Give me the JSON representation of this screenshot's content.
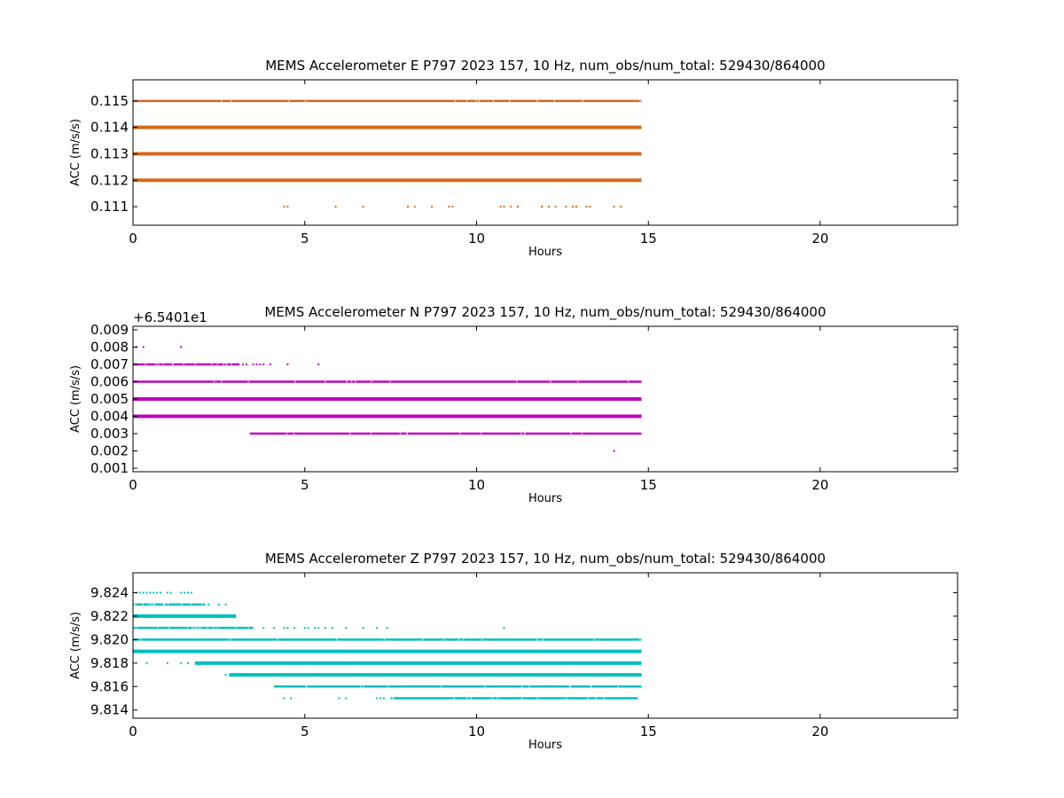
{
  "chart_data": [
    {
      "type": "scatter",
      "title": "MEMS Accelerometer E P797 2023 157, 10 Hz, num_obs/num_total: 529430/864000",
      "xlabel": "Hours",
      "ylabel": "ACC (m/s/s)",
      "xlim": [
        0,
        24
      ],
      "ylim": [
        0.1103,
        0.1158
      ],
      "xticks": [
        0,
        5,
        10,
        15,
        20
      ],
      "yticks": [
        0.111,
        0.112,
        0.113,
        0.114,
        0.115
      ],
      "ytick_labels": [
        "0.111",
        "0.112",
        "0.113",
        "0.114",
        "0.115"
      ],
      "offset_text": "",
      "color": "#d2691e",
      "grid": false,
      "legend": "none",
      "levels": [
        {
          "y": 0.115,
          "x_start": 0.0,
          "x_end": 14.8,
          "density": "medium",
          "sparse_points": []
        },
        {
          "y": 0.114,
          "x_start": 0.0,
          "x_end": 14.8,
          "density": "heavy",
          "sparse_points": []
        },
        {
          "y": 0.113,
          "x_start": 0.0,
          "x_end": 14.8,
          "density": "heavy",
          "sparse_points": []
        },
        {
          "y": 0.112,
          "x_start": 0.0,
          "x_end": 14.8,
          "density": "heavy",
          "sparse_points": []
        },
        {
          "y": 0.111,
          "x_start": null,
          "x_end": null,
          "density": "sparse",
          "sparse_points": [
            4.4,
            4.5,
            5.9,
            6.7,
            8.0,
            8.2,
            8.7,
            9.2,
            9.3,
            10.7,
            10.8,
            11.0,
            11.2,
            11.9,
            12.1,
            12.3,
            12.6,
            12.8,
            12.9,
            13.2,
            13.3,
            14.0,
            14.2
          ]
        }
      ]
    },
    {
      "type": "scatter",
      "title": "MEMS Accelerometer N P797 2023 157, 10 Hz, num_obs/num_total: 529430/864000",
      "xlabel": "Hours",
      "ylabel": "ACC (m/s/s)",
      "xlim": [
        0,
        24
      ],
      "ylim": [
        0.0008,
        0.0092
      ],
      "xticks": [
        0,
        5,
        10,
        15,
        20
      ],
      "yticks": [
        0.001,
        0.002,
        0.003,
        0.004,
        0.005,
        0.006,
        0.007,
        0.008,
        0.009
      ],
      "ytick_labels": [
        "0.001",
        "0.002",
        "0.003",
        "0.004",
        "0.005",
        "0.006",
        "0.007",
        "0.008",
        "0.009"
      ],
      "offset_text": "+6.5401e1",
      "color": "#bf00bf",
      "grid": false,
      "legend": "none",
      "levels": [
        {
          "y": 0.008,
          "x_start": null,
          "x_end": null,
          "density": "sparse",
          "sparse_points": [
            0.1,
            0.3,
            1.4
          ]
        },
        {
          "y": 0.007,
          "x_start": 0.0,
          "x_end": 3.1,
          "density": "medium",
          "sparse_points": [
            3.2,
            3.3,
            3.5,
            3.6,
            3.7,
            3.8,
            4.0,
            4.5,
            5.4
          ]
        },
        {
          "y": 0.006,
          "x_start": 0.0,
          "x_end": 14.8,
          "density": "medium",
          "sparse_points": []
        },
        {
          "y": 0.005,
          "x_start": 0.0,
          "x_end": 14.8,
          "density": "heavy",
          "sparse_points": []
        },
        {
          "y": 0.004,
          "x_start": 0.0,
          "x_end": 14.8,
          "density": "heavy",
          "sparse_points": []
        },
        {
          "y": 0.003,
          "x_start": 3.4,
          "x_end": 14.8,
          "density": "medium",
          "sparse_points": []
        },
        {
          "y": 0.002,
          "x_start": null,
          "x_end": null,
          "density": "sparse",
          "sparse_points": [
            14.0
          ]
        }
      ]
    },
    {
      "type": "scatter",
      "title": "MEMS Accelerometer Z P797 2023 157, 10 Hz, num_obs/num_total: 529430/864000",
      "xlabel": "Hours",
      "ylabel": "ACC (m/s/s)",
      "xlim": [
        0,
        24
      ],
      "ylim": [
        9.8133,
        9.8257
      ],
      "xticks": [
        0,
        5,
        10,
        15,
        20
      ],
      "yticks": [
        9.814,
        9.816,
        9.818,
        9.82,
        9.822,
        9.824
      ],
      "ytick_labels": [
        "9.814",
        "9.816",
        "9.818",
        "9.820",
        "9.822",
        "9.824"
      ],
      "offset_text": "",
      "color": "#00bfbf",
      "grid": false,
      "legend": "none",
      "levels": [
        {
          "y": 9.824,
          "x_start": null,
          "x_end": null,
          "density": "sparse",
          "sparse_points": [
            0.1,
            0.2,
            0.3,
            0.4,
            0.5,
            0.6,
            0.7,
            0.8,
            1.0,
            1.1,
            1.4,
            1.5,
            1.6,
            1.7
          ]
        },
        {
          "y": 9.823,
          "x_start": 0.0,
          "x_end": 2.1,
          "density": "medium",
          "sparse_points": [
            2.2,
            2.5,
            2.7
          ]
        },
        {
          "y": 9.822,
          "x_start": 0.0,
          "x_end": 3.0,
          "density": "heavy",
          "sparse_points": []
        },
        {
          "y": 9.821,
          "x_start": 0.0,
          "x_end": 3.5,
          "density": "medium",
          "sparse_points": [
            3.8,
            4.1,
            4.4,
            4.5,
            4.7,
            5.0,
            5.1,
            5.3,
            5.4,
            5.6,
            5.8,
            6.2,
            6.7,
            7.1,
            7.4,
            10.8
          ]
        },
        {
          "y": 9.82,
          "x_start": 0.0,
          "x_end": 14.8,
          "density": "medium",
          "sparse_points": []
        },
        {
          "y": 9.819,
          "x_start": 0.0,
          "x_end": 14.8,
          "density": "heavy",
          "sparse_points": []
        },
        {
          "y": 9.818,
          "x_start": 1.8,
          "x_end": 14.8,
          "density": "heavy",
          "sparse_points": [
            0.4,
            1.0,
            1.4,
            1.6
          ]
        },
        {
          "y": 9.817,
          "x_start": 2.8,
          "x_end": 14.8,
          "density": "heavy",
          "sparse_points": [
            2.7
          ]
        },
        {
          "y": 9.816,
          "x_start": 4.1,
          "x_end": 14.8,
          "density": "medium",
          "sparse_points": []
        },
        {
          "y": 9.815,
          "x_start": 7.5,
          "x_end": 14.7,
          "density": "medium",
          "sparse_points": [
            4.4,
            4.6,
            6.0,
            6.2,
            7.1,
            7.2,
            7.3
          ]
        }
      ]
    }
  ]
}
